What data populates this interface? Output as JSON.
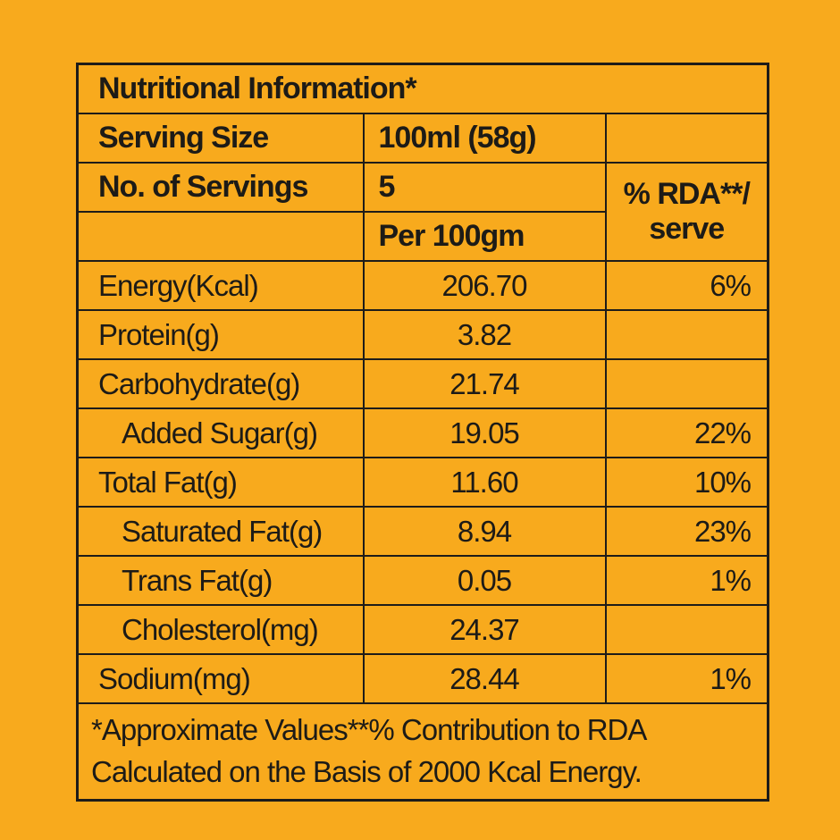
{
  "colors": {
    "background": "#F8AA1D",
    "text": "#1D1B17",
    "border": "#1E1C19"
  },
  "table": {
    "title": "Nutritional Information*",
    "header": {
      "serving_size_label": "Serving Size",
      "serving_size_value": "100ml (58g)",
      "servings_label": "No. of Servings",
      "servings_value": "5",
      "per_column_header": "Per 100gm",
      "rda_column_header": "% RDA**/\nserve"
    },
    "rows": [
      {
        "label": "Energy(Kcal)",
        "value": "206.70",
        "rda": "6%",
        "indent": false
      },
      {
        "label": "Protein(g)",
        "value": "3.82",
        "rda": "",
        "indent": false
      },
      {
        "label": "Carbohydrate(g)",
        "value": "21.74",
        "rda": "",
        "indent": false
      },
      {
        "label": "Added Sugar(g)",
        "value": "19.05",
        "rda": "22%",
        "indent": true
      },
      {
        "label": "Total Fat(g)",
        "value": "11.60",
        "rda": "10%",
        "indent": false
      },
      {
        "label": "Saturated Fat(g)",
        "value": "8.94",
        "rda": "23%",
        "indent": true
      },
      {
        "label": "Trans Fat(g)",
        "value": "0.05",
        "rda": "1%",
        "indent": true
      },
      {
        "label": "Cholesterol(mg)",
        "value": "24.37",
        "rda": "",
        "indent": true
      },
      {
        "label": "Sodium(mg)",
        "value": "28.44",
        "rda": "1%",
        "indent": false
      }
    ],
    "footnote": "*Approximate Values**% Contribution to RDA Calculated on the Basis of 2000 Kcal Energy."
  }
}
